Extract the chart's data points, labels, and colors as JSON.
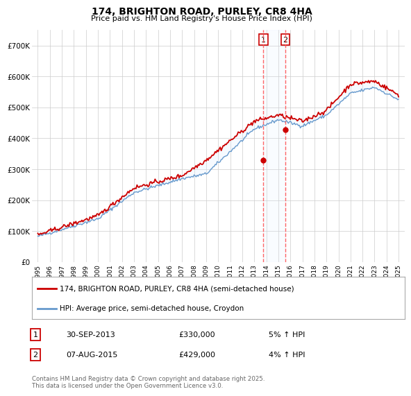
{
  "title": "174, BRIGHTON ROAD, PURLEY, CR8 4HA",
  "subtitle": "Price paid vs. HM Land Registry's House Price Index (HPI)",
  "ylim": [
    0,
    750000
  ],
  "yticks": [
    0,
    100000,
    200000,
    300000,
    400000,
    500000,
    600000,
    700000
  ],
  "ytick_labels": [
    "£0",
    "£100K",
    "£200K",
    "£300K",
    "£400K",
    "£500K",
    "£600K",
    "£700K"
  ],
  "legend_line1": "174, BRIGHTON ROAD, PURLEY, CR8 4HA (semi-detached house)",
  "legend_line2": "HPI: Average price, semi-detached house, Croydon",
  "sale1_date": "30-SEP-2013",
  "sale1_price": 330000,
  "sale1_label": "5% ↑ HPI",
  "sale1_x": 2013.75,
  "sale2_date": "07-AUG-2015",
  "sale2_price": 429000,
  "sale2_label": "4% ↑ HPI",
  "sale2_x": 2015.583,
  "footer": "Contains HM Land Registry data © Crown copyright and database right 2025.\nThis data is licensed under the Open Government Licence v3.0.",
  "line_color_red": "#cc0000",
  "line_color_blue": "#6699cc",
  "shade_color": "#ddeeff",
  "vline_color": "#ff5555",
  "background_color": "#ffffff",
  "grid_color": "#cccccc",
  "hpi_key_years": [
    0,
    5,
    8,
    12,
    14,
    18,
    20,
    22,
    24,
    26,
    28,
    30
  ],
  "hpi_key_vals": [
    83000,
    140000,
    225000,
    270000,
    285000,
    430000,
    460000,
    440000,
    475000,
    545000,
    565000,
    525000
  ],
  "prop_key_years": [
    0,
    5,
    8,
    12,
    14,
    18,
    20,
    22,
    24,
    26,
    28,
    30
  ],
  "prop_key_vals": [
    88000,
    150000,
    240000,
    280000,
    330000,
    455000,
    475000,
    455000,
    490000,
    575000,
    585000,
    540000
  ]
}
